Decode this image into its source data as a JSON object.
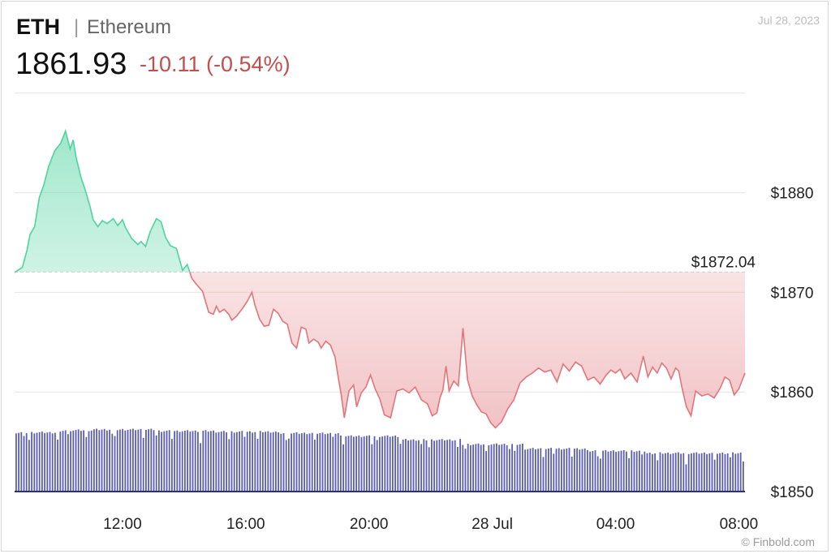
{
  "header": {
    "ticker": "ETH",
    "separator": "|",
    "name": "Ethereum",
    "price": "1861.93",
    "change": "-10.11 (-0.54%)",
    "date": "Jul 28, 2023"
  },
  "credit": "© Finbold.com",
  "colors": {
    "up_line": "#4fd3a0",
    "up_fill": "#c8f1e0",
    "down_line": "#e0767c",
    "down_fill": "#f9d4d5",
    "volume": "#5b5fb0",
    "grid": "#e4e4e4",
    "change_text": "#c0504d"
  },
  "chart_data": {
    "type": "area",
    "title": "",
    "xlabel": "",
    "ylabel": "",
    "ylim": [
      1850,
      1890
    ],
    "y_ticks": [
      1850,
      1860,
      1870,
      1880
    ],
    "y_tick_labels": [
      "$1850",
      "$1860",
      "$1870",
      "$1880"
    ],
    "baseline": {
      "value": 1872.04,
      "label": "$1872.04"
    },
    "x_ticks": [
      {
        "t": 3,
        "label": "12:00"
      },
      {
        "t": 7,
        "label": "16:00"
      },
      {
        "t": 11,
        "label": "20:00"
      },
      {
        "t": 15,
        "label": "28 Jul"
      },
      {
        "t": 19,
        "label": "04:00"
      },
      {
        "t": 23,
        "label": "08:00"
      }
    ],
    "x_range": [
      -0.5,
      23.2
    ],
    "grid": true,
    "legend": "none",
    "series": [
      {
        "x": [
          -0.5,
          -0.35,
          -0.25,
          -0.1,
          0.0,
          0.15,
          0.3,
          0.45,
          0.6,
          0.8,
          1.0,
          1.15,
          1.3,
          1.4,
          1.5,
          1.65,
          1.8,
          1.95,
          2.05,
          2.2,
          2.35,
          2.5,
          2.7,
          2.85,
          3.0,
          3.1,
          3.3,
          3.5,
          3.6,
          3.75,
          3.9,
          4.1,
          4.25,
          4.4,
          4.55,
          4.75,
          4.95,
          5.1,
          5.25,
          5.4,
          5.6,
          5.8,
          5.95,
          6.05,
          6.15,
          6.3,
          6.45,
          6.55,
          6.7,
          6.9,
          7.05,
          7.2,
          7.3,
          7.45,
          7.6,
          7.75,
          7.9,
          8.05,
          8.2,
          8.35,
          8.5,
          8.65,
          8.8,
          8.95,
          9.05,
          9.2,
          9.35,
          9.45,
          9.6,
          9.75,
          9.9,
          10.0,
          10.1,
          10.2,
          10.35,
          10.5,
          10.6,
          10.75,
          10.9,
          11.05,
          11.2,
          11.35,
          11.5,
          11.7,
          11.9,
          12.1,
          12.3,
          12.5,
          12.7,
          12.9,
          13.05,
          13.2,
          13.3,
          13.4,
          13.5,
          13.6,
          13.75,
          13.9,
          14.05,
          14.2,
          14.35,
          14.5,
          14.65,
          14.8,
          14.95,
          15.1,
          15.3,
          15.5,
          15.7,
          15.9,
          16.1,
          16.3,
          16.5,
          16.7,
          16.9,
          17.1,
          17.3,
          17.5,
          17.7,
          17.9,
          18.1,
          18.3,
          18.5,
          18.7,
          18.85,
          19.0,
          19.15,
          19.3,
          19.5,
          19.7,
          19.9,
          20.05,
          20.2,
          20.35,
          20.5,
          20.65,
          20.8,
          20.95,
          21.05,
          21.15,
          21.3,
          21.45,
          21.6,
          21.8,
          22.0,
          22.2,
          22.4,
          22.55,
          22.7,
          22.85,
          23.0,
          23.2
        ],
        "values": [
          1872.0,
          1872.3,
          1872.5,
          1874.2,
          1875.8,
          1876.6,
          1879.5,
          1880.8,
          1882.6,
          1884.2,
          1885.0,
          1886.2,
          1884.4,
          1885.3,
          1883.5,
          1881.6,
          1880.2,
          1878.6,
          1877.3,
          1876.6,
          1877.2,
          1876.9,
          1877.4,
          1876.7,
          1877.3,
          1876.5,
          1875.4,
          1874.8,
          1875.1,
          1874.6,
          1876.1,
          1877.4,
          1877.1,
          1875.5,
          1874.7,
          1874.4,
          1872.2,
          1872.8,
          1871.4,
          1870.8,
          1870.1,
          1868.0,
          1867.8,
          1868.6,
          1868.0,
          1868.3,
          1867.8,
          1867.2,
          1867.6,
          1868.4,
          1869.1,
          1870.0,
          1868.7,
          1867.3,
          1866.6,
          1866.7,
          1868.3,
          1867.9,
          1867.1,
          1866.8,
          1864.9,
          1864.4,
          1866.5,
          1866.3,
          1864.9,
          1865.3,
          1865.0,
          1864.4,
          1865.1,
          1864.7,
          1863.5,
          1861.5,
          1859.7,
          1857.4,
          1860.1,
          1860.7,
          1858.5,
          1859.9,
          1860.5,
          1861.7,
          1860.3,
          1859.3,
          1857.7,
          1857.4,
          1860.1,
          1860.3,
          1859.9,
          1860.5,
          1859.2,
          1858.8,
          1857.6,
          1857.9,
          1859.4,
          1860.2,
          1862.6,
          1860.1,
          1861.1,
          1860.6,
          1866.4,
          1861.2,
          1859.6,
          1858.7,
          1858.0,
          1857.8,
          1856.9,
          1856.4,
          1857.0,
          1858.3,
          1859.2,
          1860.9,
          1861.5,
          1861.9,
          1862.4,
          1862.0,
          1862.2,
          1861.0,
          1862.8,
          1862.1,
          1863.0,
          1862.6,
          1861.2,
          1861.5,
          1860.8,
          1861.7,
          1862.2,
          1861.9,
          1862.3,
          1861.3,
          1861.9,
          1861.0,
          1863.6,
          1861.5,
          1862.5,
          1861.9,
          1862.9,
          1862.4,
          1861.3,
          1862.4,
          1862.1,
          1860.5,
          1858.5,
          1857.6,
          1860.1,
          1859.6,
          1859.8,
          1859.4,
          1860.4,
          1861.5,
          1861.2,
          1859.7,
          1860.3,
          1861.9
        ]
      }
    ],
    "volume": {
      "note": "relative volume bars, fraction of volume panel height",
      "segments": [
        {
          "from": -0.5,
          "to": 1.0,
          "level": 0.8
        },
        {
          "from": 1.0,
          "to": 2.0,
          "level": 0.83
        },
        {
          "from": 2.0,
          "to": 4.0,
          "level": 0.84
        },
        {
          "from": 4.0,
          "to": 6.0,
          "level": 0.82
        },
        {
          "from": 6.0,
          "to": 8.0,
          "level": 0.81
        },
        {
          "from": 8.0,
          "to": 10.0,
          "level": 0.79
        },
        {
          "from": 10.0,
          "to": 12.0,
          "level": 0.75
        },
        {
          "from": 12.0,
          "to": 14.0,
          "level": 0.7
        },
        {
          "from": 14.0,
          "to": 16.0,
          "level": 0.64
        },
        {
          "from": 16.0,
          "to": 18.0,
          "level": 0.58
        },
        {
          "from": 18.0,
          "to": 20.0,
          "level": 0.55
        },
        {
          "from": 20.0,
          "to": 23.2,
          "level": 0.52
        }
      ]
    }
  }
}
